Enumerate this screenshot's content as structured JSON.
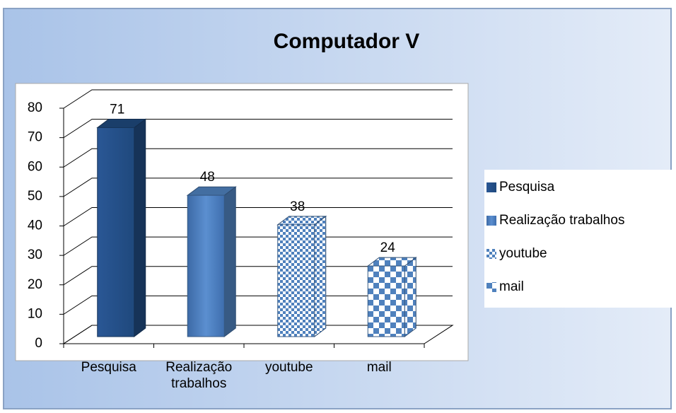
{
  "chart_data": {
    "type": "bar3d",
    "title": "Computador V",
    "categories": [
      "Pesquisa",
      "Realização trabalhos",
      "youtube",
      "mail"
    ],
    "values": [
      71,
      48,
      38,
      24
    ],
    "colors": [
      "#1f497d",
      "#4f81bd",
      "#4f81bd",
      "#4f81bd"
    ],
    "ylim": [
      0,
      80
    ],
    "yticks": [
      0,
      10,
      20,
      30,
      40,
      50,
      60,
      70,
      80
    ],
    "grid": true,
    "legend": "right"
  }
}
